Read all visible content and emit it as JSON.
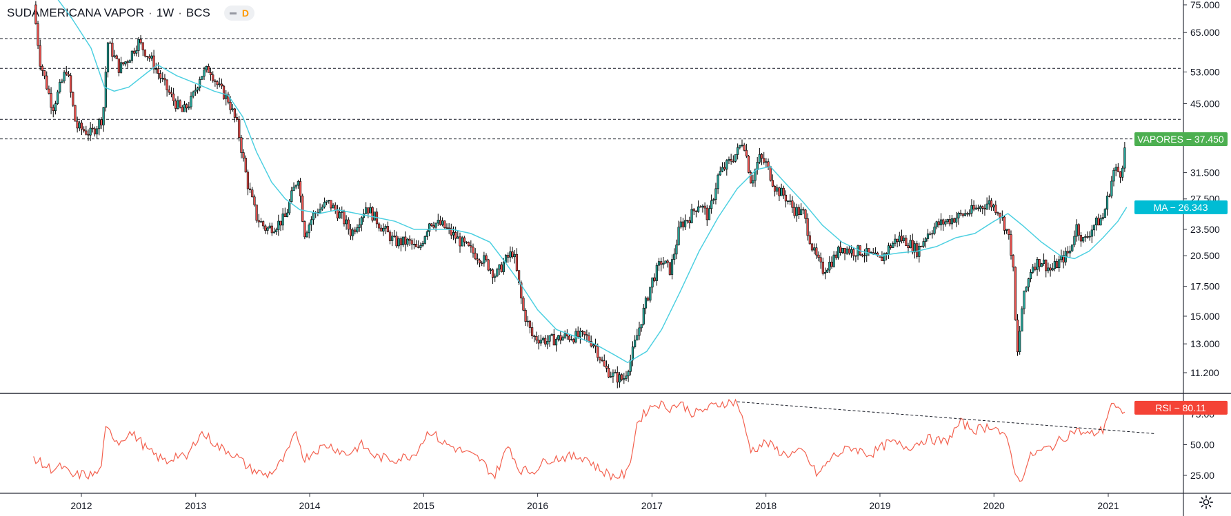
{
  "header": {
    "symbol_name": "SUDAMERICANA VAPOR",
    "interval": "1W",
    "exchange": "BCS",
    "separator": "·",
    "badge_letter": "D"
  },
  "colors": {
    "up_candle": "#26a69a",
    "down_candle": "#ef5350",
    "candle_outline": "#000000",
    "ma_line": "#4dd0e1",
    "rsi_line": "#f3614f",
    "price_label_bg": "#4caf50",
    "ma_label_bg": "#00bcd4",
    "rsi_label_bg": "#f44336"
  },
  "chart_data": [
    {
      "type": "candlestick",
      "pane": "price",
      "scale": "log",
      "ylim": [
        10.5,
        80
      ],
      "y_ticks": [
        75,
        65,
        53,
        45,
        31.5,
        27.5,
        23.5,
        20.5,
        17.5,
        15,
        13,
        11.2
      ],
      "y_tick_labels": [
        "75.000",
        "65.000",
        "53.000",
        "45.000",
        "31.500",
        "27.500",
        "23.500",
        "20.500",
        "17.500",
        "15.000",
        "13.000",
        "11.200"
      ],
      "x_ticks": [
        "2012",
        "2013",
        "2014",
        "2015",
        "2016",
        "2017",
        "2018",
        "2019",
        "2020",
        "2021"
      ],
      "price_series": {
        "name": "VAPORES",
        "last_value": 37.45,
        "label": "VAPORES − 37.450",
        "path": [
          [
            "2011-08-01",
            75
          ],
          [
            "2011-08-22",
            56
          ],
          [
            "2011-10-01",
            44
          ],
          [
            "2011-11-15",
            54
          ],
          [
            "2011-12-15",
            40
          ],
          [
            "2012-02-01",
            38.5
          ],
          [
            "2012-03-10",
            42
          ],
          [
            "2012-03-25",
            62
          ],
          [
            "2012-05-01",
            54
          ],
          [
            "2012-06-01",
            57
          ],
          [
            "2012-07-01",
            62
          ],
          [
            "2012-08-15",
            56
          ],
          [
            "2012-09-20",
            50
          ],
          [
            "2012-10-20",
            46
          ],
          [
            "2012-11-20",
            43
          ],
          [
            "2012-12-20",
            46
          ],
          [
            "2013-01-15",
            52
          ],
          [
            "2013-02-15",
            54
          ],
          [
            "2013-03-15",
            49
          ],
          [
            "2013-04-15",
            46
          ],
          [
            "2013-05-15",
            40
          ],
          [
            "2013-06-15",
            30
          ],
          [
            "2013-07-15",
            25
          ],
          [
            "2013-08-15",
            23.5
          ],
          [
            "2013-09-15",
            24
          ],
          [
            "2013-10-15",
            25
          ],
          [
            "2013-11-01",
            27.5
          ],
          [
            "2013-11-25",
            31
          ],
          [
            "2013-12-15",
            23
          ],
          [
            "2014-01-15",
            25.5
          ],
          [
            "2014-03-01",
            27
          ],
          [
            "2014-04-15",
            25
          ],
          [
            "2014-05-15",
            23
          ],
          [
            "2014-07-01",
            26.5
          ],
          [
            "2014-08-15",
            24
          ],
          [
            "2014-10-01",
            22
          ],
          [
            "2014-11-15",
            22
          ],
          [
            "2014-12-15",
            21
          ],
          [
            "2015-01-20",
            24.5
          ],
          [
            "2015-03-01",
            24
          ],
          [
            "2015-04-15",
            22.5
          ],
          [
            "2015-06-01",
            21
          ],
          [
            "2015-07-15",
            20
          ],
          [
            "2015-08-20",
            18.5
          ],
          [
            "2015-09-20",
            20
          ],
          [
            "2015-10-15",
            21
          ],
          [
            "2015-11-15",
            15.5
          ],
          [
            "2015-12-15",
            13.5
          ],
          [
            "2016-02-01",
            13.2
          ],
          [
            "2016-04-01",
            13.5
          ],
          [
            "2016-06-01",
            13.5
          ],
          [
            "2016-07-01",
            13
          ],
          [
            "2016-08-01",
            11.5
          ],
          [
            "2016-09-01",
            11
          ],
          [
            "2016-10-01",
            10.8
          ],
          [
            "2016-10-25",
            12
          ],
          [
            "2016-12-01",
            15
          ],
          [
            "2017-01-01",
            18
          ],
          [
            "2017-02-01",
            20
          ],
          [
            "2017-03-01",
            19
          ],
          [
            "2017-04-01",
            24
          ],
          [
            "2017-05-01",
            25
          ],
          [
            "2017-06-01",
            27
          ],
          [
            "2017-07-01",
            25
          ],
          [
            "2017-08-01",
            31
          ],
          [
            "2017-09-01",
            33
          ],
          [
            "2017-10-01",
            35
          ],
          [
            "2017-10-20",
            37.5
          ],
          [
            "2017-11-15",
            30
          ],
          [
            "2017-12-10",
            34
          ],
          [
            "2018-01-01",
            33
          ],
          [
            "2018-02-01",
            29
          ],
          [
            "2018-03-01",
            28
          ],
          [
            "2018-04-01",
            26
          ],
          [
            "2018-05-01",
            25.5
          ],
          [
            "2018-06-01",
            21
          ],
          [
            "2018-07-01",
            19
          ],
          [
            "2018-08-01",
            20
          ],
          [
            "2018-09-01",
            21.5
          ],
          [
            "2018-10-01",
            21
          ],
          [
            "2018-11-01",
            21
          ],
          [
            "2018-12-01",
            20.5
          ],
          [
            "2019-01-01",
            20
          ],
          [
            "2019-02-01",
            21.5
          ],
          [
            "2019-03-01",
            22.5
          ],
          [
            "2019-04-01",
            22
          ],
          [
            "2019-05-01",
            21
          ],
          [
            "2019-06-01",
            23
          ],
          [
            "2019-07-01",
            24
          ],
          [
            "2019-09-01",
            25
          ],
          [
            "2019-11-01",
            26
          ],
          [
            "2019-12-15",
            27
          ],
          [
            "2020-01-15",
            26
          ],
          [
            "2020-02-15",
            23
          ],
          [
            "2020-03-01",
            20
          ],
          [
            "2020-03-15",
            12
          ],
          [
            "2020-04-01",
            16
          ],
          [
            "2020-05-01",
            19.5
          ],
          [
            "2020-06-01",
            20
          ],
          [
            "2020-07-01",
            19
          ],
          [
            "2020-08-01",
            20
          ],
          [
            "2020-09-01",
            21
          ],
          [
            "2020-09-20",
            24
          ],
          [
            "2020-10-15",
            22
          ],
          [
            "2020-11-15",
            24
          ],
          [
            "2020-12-15",
            25
          ],
          [
            "2021-01-01",
            28
          ],
          [
            "2021-01-20",
            32
          ],
          [
            "2021-02-10",
            31.5
          ],
          [
            "2021-03-01",
            37.45
          ]
        ]
      },
      "moving_average": {
        "name": "MA",
        "last_value": 26.343,
        "label": "MA − 26.343",
        "points": [
          [
            "2011-10-01",
            80
          ],
          [
            "2011-12-01",
            70
          ],
          [
            "2012-02-01",
            60
          ],
          [
            "2012-03-15",
            49
          ],
          [
            "2012-04-15",
            48
          ],
          [
            "2012-06-01",
            49
          ],
          [
            "2012-08-01",
            53
          ],
          [
            "2012-09-01",
            55
          ],
          [
            "2012-11-01",
            52
          ],
          [
            "2013-01-01",
            50
          ],
          [
            "2013-03-01",
            48
          ],
          [
            "2013-04-15",
            47
          ],
          [
            "2013-06-01",
            42
          ],
          [
            "2013-07-15",
            35
          ],
          [
            "2013-09-01",
            30
          ],
          [
            "2013-10-15",
            27.5
          ],
          [
            "2013-12-01",
            26
          ],
          [
            "2014-02-01",
            25.5
          ],
          [
            "2014-04-01",
            26
          ],
          [
            "2014-06-01",
            25.5
          ],
          [
            "2014-08-01",
            25
          ],
          [
            "2014-10-01",
            24.5
          ],
          [
            "2014-12-01",
            23.5
          ],
          [
            "2015-02-01",
            23.5
          ],
          [
            "2015-04-01",
            23.5
          ],
          [
            "2015-06-01",
            23
          ],
          [
            "2015-08-01",
            22
          ],
          [
            "2015-09-15",
            20
          ],
          [
            "2015-11-01",
            18
          ],
          [
            "2016-01-01",
            15.5
          ],
          [
            "2016-03-01",
            14
          ],
          [
            "2016-05-01",
            13.5
          ],
          [
            "2016-07-01",
            13
          ],
          [
            "2016-09-01",
            12.3
          ],
          [
            "2016-10-15",
            11.8
          ],
          [
            "2016-12-15",
            12.5
          ],
          [
            "2017-02-01",
            14
          ],
          [
            "2017-04-01",
            17
          ],
          [
            "2017-06-01",
            21
          ],
          [
            "2017-08-01",
            25
          ],
          [
            "2017-10-01",
            29
          ],
          [
            "2017-12-01",
            32
          ],
          [
            "2018-01-15",
            32.5
          ],
          [
            "2018-03-01",
            30
          ],
          [
            "2018-05-01",
            27
          ],
          [
            "2018-07-01",
            24
          ],
          [
            "2018-09-01",
            22
          ],
          [
            "2018-11-01",
            21
          ],
          [
            "2019-01-01",
            20.5
          ],
          [
            "2019-03-01",
            20.8
          ],
          [
            "2019-05-01",
            21
          ],
          [
            "2019-07-01",
            21.5
          ],
          [
            "2019-09-01",
            22.5
          ],
          [
            "2019-11-01",
            23
          ],
          [
            "2020-01-01",
            24.5
          ],
          [
            "2020-02-15",
            25.5
          ],
          [
            "2020-04-01",
            24
          ],
          [
            "2020-06-01",
            22
          ],
          [
            "2020-08-01",
            20.5
          ],
          [
            "2020-09-15",
            20.2
          ],
          [
            "2020-11-01",
            21
          ],
          [
            "2020-12-15",
            22.5
          ],
          [
            "2021-02-01",
            24.5
          ],
          [
            "2021-03-01",
            26.343
          ]
        ]
      },
      "horizontal_levels": [
        63,
        54,
        41.5,
        37.5
      ]
    },
    {
      "type": "line",
      "pane": "rsi",
      "name": "RSI",
      "ylim": [
        15,
        90
      ],
      "y_ticks": [
        75,
        50,
        25
      ],
      "y_tick_labels": [
        "75.00",
        "50.00",
        "25.00"
      ],
      "last_value": 80.11,
      "label": "RSI − 80.11",
      "points": [
        [
          "2011-08-01",
          40
        ],
        [
          "2011-09-01",
          33
        ],
        [
          "2011-10-01",
          30
        ],
        [
          "2011-11-01",
          32
        ],
        [
          "2011-12-01",
          24
        ],
        [
          "2012-01-01",
          26
        ],
        [
          "2012-02-01",
          25
        ],
        [
          "2012-03-01",
          28
        ],
        [
          "2012-03-20",
          63
        ],
        [
          "2012-05-01",
          52
        ],
        [
          "2012-06-01",
          60
        ],
        [
          "2012-07-01",
          55
        ],
        [
          "2012-08-01",
          45
        ],
        [
          "2012-09-01",
          40
        ],
        [
          "2012-10-01",
          36
        ],
        [
          "2012-11-01",
          42
        ],
        [
          "2012-12-01",
          38
        ],
        [
          "2013-01-15",
          60
        ],
        [
          "2013-02-15",
          55
        ],
        [
          "2013-03-15",
          48
        ],
        [
          "2013-04-15",
          45
        ],
        [
          "2013-05-15",
          40
        ],
        [
          "2013-06-15",
          32
        ],
        [
          "2013-07-15",
          28
        ],
        [
          "2013-08-15",
          25
        ],
        [
          "2013-09-15",
          30
        ],
        [
          "2013-10-15",
          40
        ],
        [
          "2013-11-20",
          60
        ],
        [
          "2013-12-15",
          38
        ],
        [
          "2014-01-15",
          45
        ],
        [
          "2014-03-01",
          50
        ],
        [
          "2014-05-01",
          42
        ],
        [
          "2014-06-15",
          50
        ],
        [
          "2014-08-01",
          40
        ],
        [
          "2014-10-01",
          38
        ],
        [
          "2014-12-01",
          42
        ],
        [
          "2015-01-20",
          62
        ],
        [
          "2015-03-01",
          52
        ],
        [
          "2015-05-01",
          45
        ],
        [
          "2015-07-01",
          38
        ],
        [
          "2015-08-15",
          24
        ],
        [
          "2015-10-01",
          50
        ],
        [
          "2015-11-01",
          30
        ],
        [
          "2015-12-15",
          28
        ],
        [
          "2016-02-01",
          38
        ],
        [
          "2016-04-01",
          40
        ],
        [
          "2016-06-01",
          40
        ],
        [
          "2016-07-15",
          30
        ],
        [
          "2016-09-01",
          24
        ],
        [
          "2016-10-15",
          26
        ],
        [
          "2016-11-15",
          68
        ],
        [
          "2016-12-15",
          78
        ],
        [
          "2017-01-15",
          84
        ],
        [
          "2017-03-01",
          80
        ],
        [
          "2017-04-01",
          84
        ],
        [
          "2017-05-15",
          75
        ],
        [
          "2017-07-01",
          80
        ],
        [
          "2017-08-15",
          84
        ],
        [
          "2017-10-01",
          85
        ],
        [
          "2017-11-15",
          45
        ],
        [
          "2018-01-01",
          52
        ],
        [
          "2018-03-01",
          42
        ],
        [
          "2018-05-01",
          44
        ],
        [
          "2018-06-15",
          25
        ],
        [
          "2018-08-01",
          40
        ],
        [
          "2018-10-01",
          48
        ],
        [
          "2018-12-01",
          42
        ],
        [
          "2019-02-01",
          52
        ],
        [
          "2019-04-01",
          48
        ],
        [
          "2019-06-01",
          55
        ],
        [
          "2019-08-01",
          52
        ],
        [
          "2019-09-15",
          68
        ],
        [
          "2019-11-01",
          62
        ],
        [
          "2020-01-01",
          66
        ],
        [
          "2020-02-15",
          52
        ],
        [
          "2020-03-20",
          18
        ],
        [
          "2020-05-01",
          42
        ],
        [
          "2020-07-01",
          48
        ],
        [
          "2020-09-15",
          62
        ],
        [
          "2020-11-01",
          58
        ],
        [
          "2020-12-15",
          62
        ],
        [
          "2021-01-10",
          84
        ],
        [
          "2021-02-05",
          76
        ],
        [
          "2021-03-01",
          80.11
        ]
      ],
      "trendline": [
        [
          "2017-10-01",
          85
        ],
        [
          "2021-06-01",
          59
        ]
      ]
    }
  ]
}
